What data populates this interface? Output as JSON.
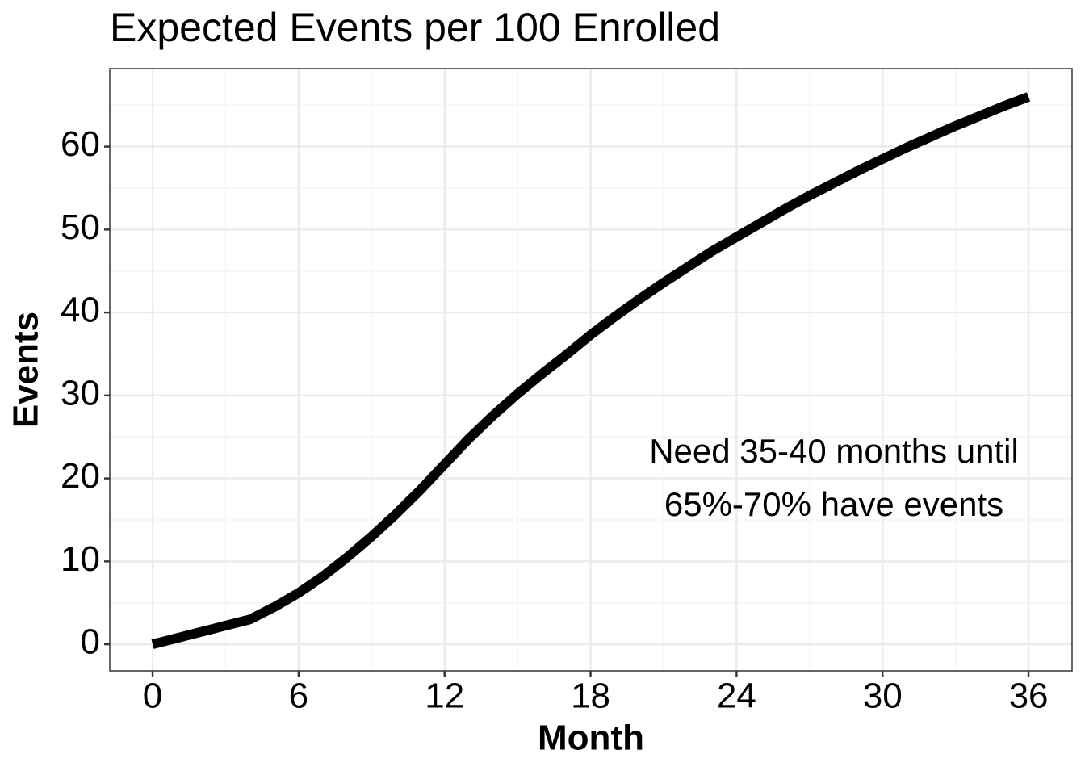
{
  "chart_data": {
    "type": "line",
    "title": "Expected Events per 100 Enrolled",
    "x_label": "Month",
    "y_label": "Events",
    "annotation": [
      "Need 35-40 months until",
      "65%-70% have events"
    ],
    "x": [
      0,
      1,
      2,
      3,
      4,
      5,
      6,
      7,
      8,
      9,
      10,
      11,
      12,
      13,
      14,
      15,
      16,
      17,
      18,
      19,
      20,
      21,
      22,
      23,
      24,
      25,
      26,
      27,
      28,
      29,
      30,
      31,
      32,
      33,
      34,
      35,
      36
    ],
    "series": [
      {
        "color": "#000000",
        "values": [
          0,
          0.75,
          1.5,
          2.25,
          3,
          4.5,
          6.2,
          8.2,
          10.5,
          13,
          15.7,
          18.6,
          21.7,
          24.8,
          27.6,
          30.2,
          32.6,
          34.9,
          37.3,
          39.5,
          41.6,
          43.6,
          45.5,
          47.4,
          49.1,
          50.8,
          52.5,
          54.1,
          55.6,
          57.1,
          58.5,
          59.9,
          61.2,
          62.5,
          63.7,
          64.9,
          66.0
        ]
      }
    ],
    "xlim": [
      -1.76,
      37.79
    ],
    "ylim": [
      -3.2,
      69.4
    ],
    "xticks": [
      0,
      6,
      12,
      18,
      24,
      30,
      36
    ],
    "yticks": [
      0,
      10,
      20,
      30,
      40,
      50,
      60
    ],
    "grid": true
  }
}
